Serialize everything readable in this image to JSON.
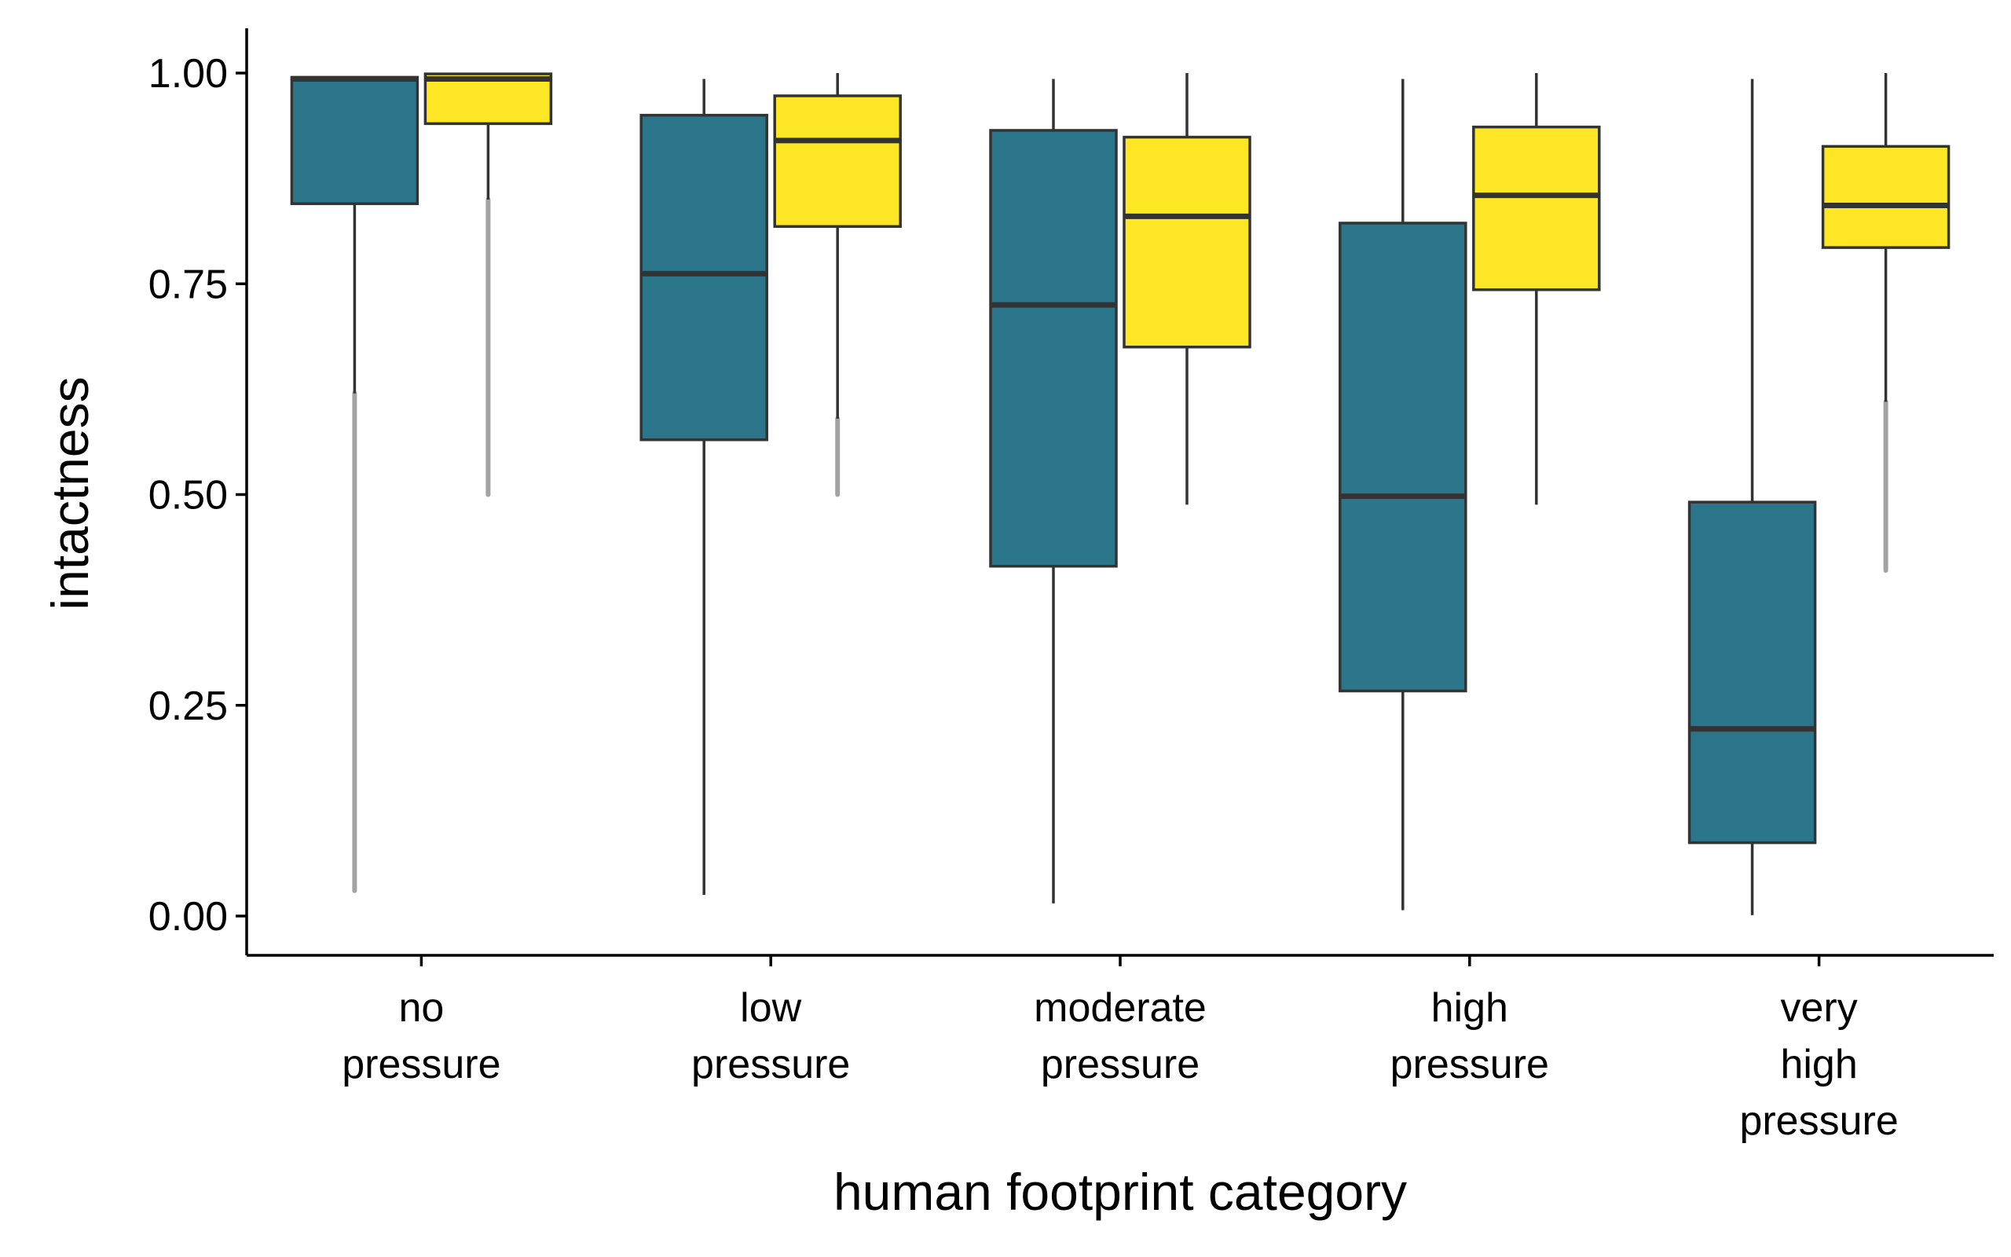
{
  "chart_data": {
    "type": "box",
    "xlabel": "human footprint category",
    "ylabel": "intactness",
    "ylim": [
      -0.05,
      1.05
    ],
    "yticks": [
      "0.00",
      "0.25",
      "0.50",
      "0.75",
      "1.00"
    ],
    "grid": false,
    "legend": "none",
    "categories": [
      [
        "no",
        "pressure"
      ],
      [
        "low",
        "pressure"
      ],
      [
        "moderate",
        "pressure"
      ],
      [
        "high",
        "pressure"
      ],
      [
        "very",
        "high",
        "pressure"
      ]
    ],
    "series": [
      {
        "color": "#2b768b",
        "boxes": [
          {
            "whisker_low": 0.62,
            "q1": 0.845,
            "median": 0.993,
            "q3": 0.995,
            "whisker_high": 0.996,
            "outliers_low": 0.03,
            "outliers_high": 0.62
          },
          {
            "whisker_low": 0.025,
            "q1": 0.565,
            "median": 0.762,
            "q3": 0.95,
            "whisker_high": 0.993
          },
          {
            "whisker_low": 0.015,
            "q1": 0.415,
            "median": 0.725,
            "q3": 0.932,
            "whisker_high": 0.993
          },
          {
            "whisker_low": 0.007,
            "q1": 0.267,
            "median": 0.498,
            "q3": 0.822,
            "whisker_high": 0.993
          },
          {
            "whisker_low": 0.001,
            "q1": 0.087,
            "median": 0.222,
            "q3": 0.491,
            "whisker_high": 0.993
          }
        ]
      },
      {
        "color": "#fde725",
        "boxes": [
          {
            "whisker_low": 0.85,
            "q1": 0.94,
            "median": 0.993,
            "q3": 0.999,
            "whisker_high": 1.0,
            "outliers_low": 0.5,
            "outliers_high": 0.85
          },
          {
            "whisker_low": 0.59,
            "q1": 0.818,
            "median": 0.92,
            "q3": 0.973,
            "whisker_high": 1.0,
            "outliers_low": 0.5,
            "outliers_high": 0.59
          },
          {
            "whisker_low": 0.488,
            "q1": 0.675,
            "median": 0.83,
            "q3": 0.924,
            "whisker_high": 1.0
          },
          {
            "whisker_low": 0.488,
            "q1": 0.743,
            "median": 0.855,
            "q3": 0.936,
            "whisker_high": 1.0
          },
          {
            "whisker_low": 0.61,
            "q1": 0.793,
            "median": 0.843,
            "q3": 0.913,
            "whisker_high": 1.0,
            "outliers_low": 0.41,
            "outliers_high": 0.61
          }
        ]
      }
    ]
  }
}
